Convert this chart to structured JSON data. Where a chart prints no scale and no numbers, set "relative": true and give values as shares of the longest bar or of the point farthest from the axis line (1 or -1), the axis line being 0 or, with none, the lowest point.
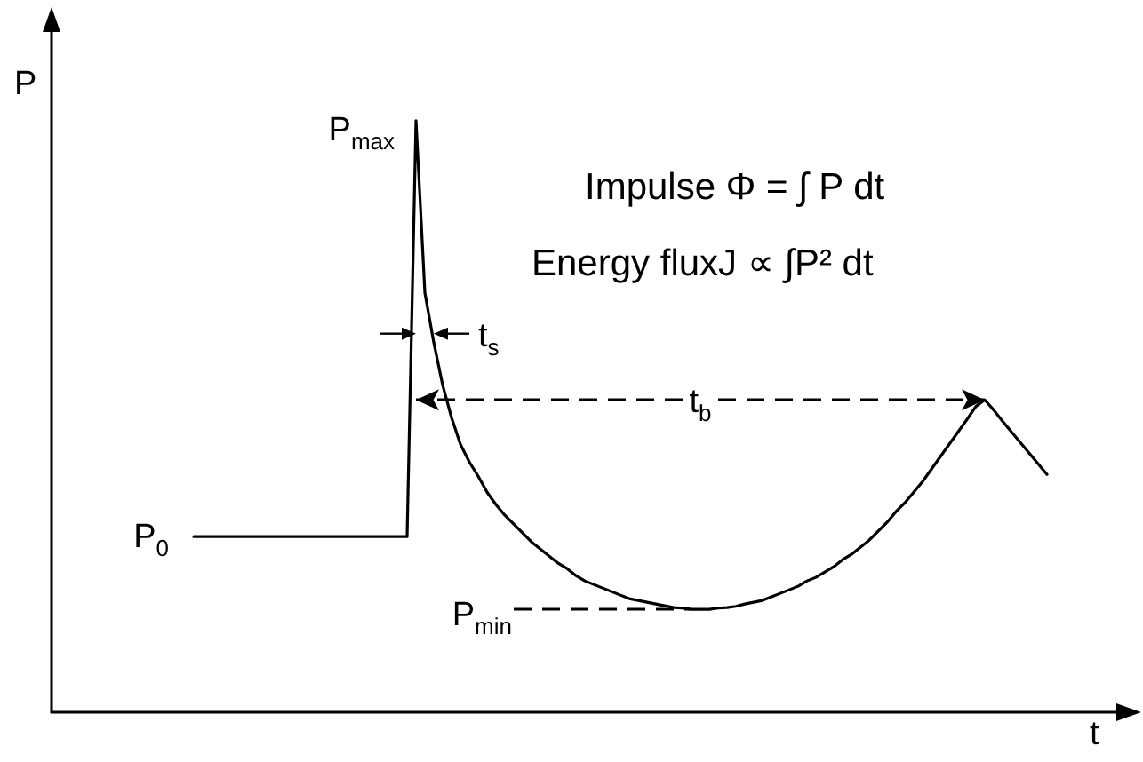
{
  "chart_data": {
    "type": "line",
    "relative": true,
    "xlabel": "t",
    "ylabel": "P",
    "marker": "none",
    "tick_labels": false,
    "categories": [
      null,
      null,
      null,
      null,
      null,
      null,
      null,
      null,
      null,
      null,
      null,
      null,
      null,
      null,
      null,
      null,
      null,
      null,
      null,
      null,
      null,
      null,
      null,
      null,
      null,
      null,
      null,
      null,
      null,
      null,
      null,
      null,
      null,
      null,
      null,
      null,
      null,
      null,
      null,
      null,
      null,
      null,
      null,
      null,
      null,
      null,
      null,
      null,
      null,
      null,
      null,
      null,
      null,
      null,
      null,
      null,
      null,
      null,
      null,
      null,
      null,
      null,
      null,
      null,
      null,
      null,
      null,
      null,
      null,
      null,
      null,
      null,
      null,
      null,
      null,
      null,
      null,
      null,
      null,
      null,
      null,
      null,
      null,
      null,
      null,
      null,
      null,
      null,
      null,
      null,
      null,
      null,
      null,
      null,
      null,
      null,
      null,
      null,
      null,
      null,
      null,
      null,
      null,
      null,
      null,
      null,
      null,
      null,
      null,
      null,
      null,
      null,
      null,
      null,
      null,
      null,
      null,
      null,
      null,
      null,
      null,
      null,
      null
    ],
    "series": [
      {
        "color": "#000000",
        "values": [
          null,
          null,
          null,
          null,
          null,
          null,
          null,
          null,
          null,
          null,
          null,
          null,
          null,
          null,
          null,
          null,
          0.297,
          0.297,
          0.297,
          0.297,
          0.297,
          0.297,
          0.297,
          0.297,
          0.297,
          0.297,
          0.297,
          0.297,
          0.297,
          0.297,
          0.297,
          0.297,
          0.297,
          0.297,
          0.297,
          0.297,
          0.297,
          0.297,
          0.297,
          0.297,
          0.297,
          1,
          0.709,
          0.625,
          0.553,
          0.498,
          0.453,
          0.423,
          0.399,
          0.372,
          0.351,
          0.333,
          0.318,
          0.303,
          0.288,
          0.276,
          0.264,
          0.252,
          0.243,
          0.231,
          0.222,
          0.216,
          0.21,
          0.204,
          0.198,
          0.192,
          0.189,
          0.186,
          0.183,
          0.18,
          0.177,
          0.176,
          0.174,
          0.174,
          0.174,
          0.176,
          0.177,
          0.179,
          0.183,
          0.186,
          0.189,
          0.195,
          0.201,
          0.207,
          0.213,
          0.222,
          0.228,
          0.237,
          0.246,
          0.258,
          0.267,
          0.279,
          0.291,
          0.306,
          0.321,
          0.339,
          0.354,
          0.372,
          0.39,
          0.411,
          0.432,
          0.453,
          0.474,
          0.495,
          0.517,
          0.528,
          0.511,
          0.492,
          0.474,
          0.456,
          0.438,
          0.42,
          0.402,
          null,
          null,
          null,
          null,
          null,
          null,
          null,
          null,
          null,
          null
        ]
      }
    ],
    "ref_lines": [
      {
        "axis": "y",
        "value": 0.174,
        "label": "P$_{min}$",
        "line_style": "dashed",
        "color": "#000000"
      }
    ],
    "annotations": [
      "P$_{max}$",
      "P$_{0}$",
      "t$_{s}$",
      "t$_{b}$",
      "Impulse Φ = ∫ P dt",
      "Energy fluxJ ∝ ∫P² dt"
    ]
  }
}
